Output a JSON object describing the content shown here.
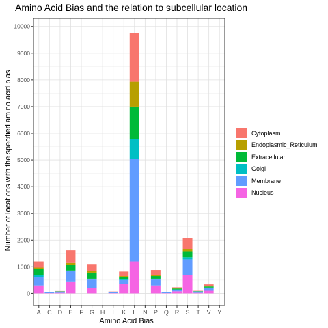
{
  "chart_data": {
    "type": "bar",
    "stacked": true,
    "title": "Amino Acid Bias and the relation to subcellular location",
    "xlabel": "Amino Acid Bias",
    "ylabel": "Number of locations with the specified amino acid bias",
    "ylim": [
      -450,
      10300
    ],
    "yticks": [
      0,
      1000,
      2000,
      3000,
      4000,
      5000,
      6000,
      7000,
      8000,
      9000,
      10000
    ],
    "grid": true,
    "legend_position": "right",
    "categories": [
      "A",
      "C",
      "D",
      "E",
      "F",
      "G",
      "H",
      "I",
      "K",
      "L",
      "N",
      "P",
      "Q",
      "R",
      "S",
      "T",
      "V",
      "Y"
    ],
    "series": [
      {
        "name": "Nucleus",
        "color": "#F564E3",
        "values": [
          300,
          10,
          20,
          450,
          0,
          200,
          0,
          10,
          350,
          1200,
          0,
          300,
          10,
          80,
          680,
          20,
          100,
          0
        ]
      },
      {
        "name": "Membrane",
        "color": "#619CFF",
        "values": [
          320,
          30,
          40,
          380,
          0,
          320,
          0,
          40,
          150,
          3850,
          0,
          220,
          30,
          60,
          600,
          50,
          100,
          0
        ]
      },
      {
        "name": "Golgi",
        "color": "#00BFC4",
        "values": [
          60,
          5,
          10,
          30,
          0,
          30,
          0,
          5,
          30,
          730,
          0,
          30,
          5,
          10,
          80,
          5,
          20,
          0
        ]
      },
      {
        "name": "Extracellular",
        "color": "#00BA38",
        "values": [
          230,
          5,
          10,
          200,
          0,
          230,
          0,
          5,
          80,
          1220,
          0,
          100,
          5,
          30,
          200,
          10,
          40,
          0
        ]
      },
      {
        "name": "Endoplasmic_Reticulum",
        "color": "#B79F00",
        "values": [
          60,
          0,
          0,
          80,
          0,
          50,
          0,
          0,
          40,
          930,
          0,
          50,
          0,
          10,
          100,
          5,
          10,
          0
        ]
      },
      {
        "name": "Cytoplasm",
        "color": "#F8766D",
        "values": [
          230,
          10,
          10,
          480,
          0,
          250,
          0,
          10,
          170,
          1830,
          0,
          180,
          10,
          40,
          420,
          10,
          70,
          0
        ]
      }
    ]
  }
}
